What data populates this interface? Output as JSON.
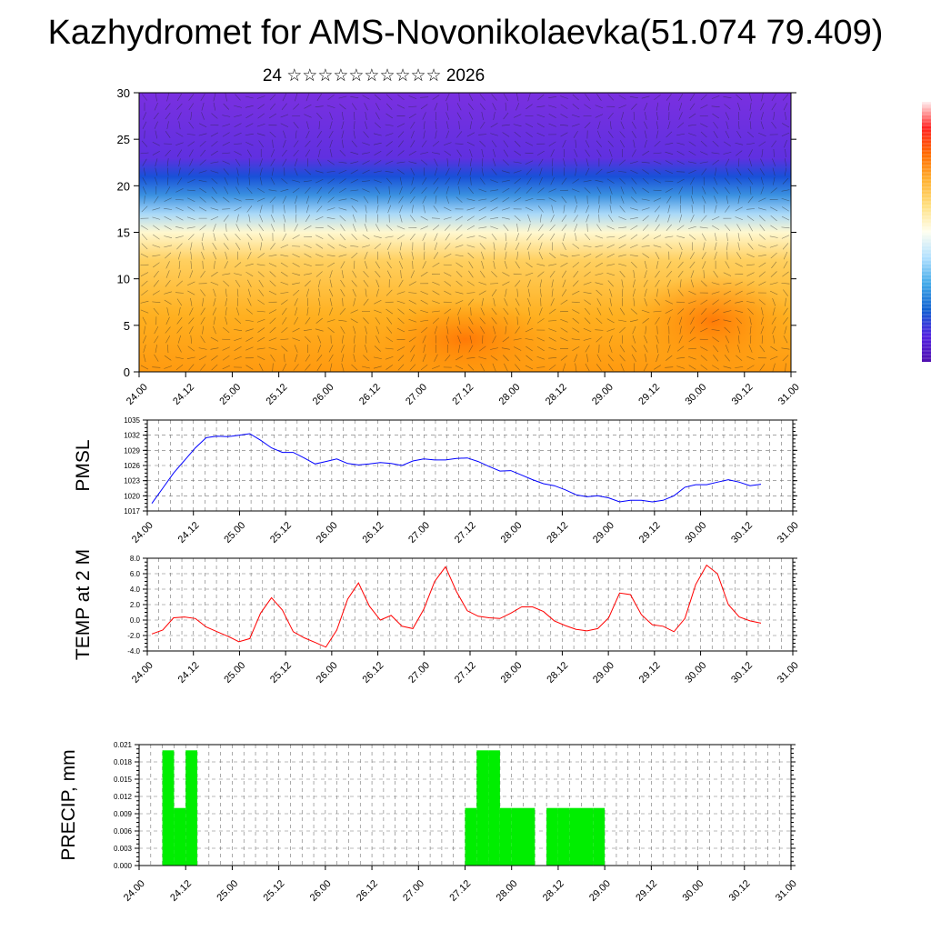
{
  "title": "Kazhydromet for AMS-Novonikolaevka(51.074 79.409)",
  "subtitle": "24 ☆☆☆☆☆☆☆☆☆☆ 2026",
  "colorbar": {
    "colors": [
      "#ffeef0",
      "#ff2020",
      "#ff6a00",
      "#ffb030",
      "#ffe080",
      "#fffff0",
      "#b0e0ff",
      "#40a8e8",
      "#1060d0",
      "#5020e0",
      "#5010b0"
    ]
  },
  "chart_data": [
    {
      "id": "cross-section",
      "type": "heatmap",
      "title": "",
      "xlabel": "",
      "ylabel": "",
      "ylim": [
        0,
        30
      ],
      "yticks": [
        0,
        5,
        10,
        15,
        20,
        25,
        30
      ],
      "x_tick_labels": [
        "24.00",
        "24.12",
        "25.00",
        "25.12",
        "26.00",
        "26.12",
        "27.00",
        "27.12",
        "28.00",
        "28.12",
        "29.00",
        "29.12",
        "30.00",
        "30.12",
        "31.00"
      ],
      "description_levels": [
        {
          "level": 0,
          "color": "#ff9a10"
        },
        {
          "level": 6,
          "color": "#ffb020"
        },
        {
          "level": 12,
          "color": "#ffd060"
        },
        {
          "level": 15,
          "color": "#fff8d0"
        },
        {
          "level": 17,
          "color": "#a8d8f8"
        },
        {
          "level": 19,
          "color": "#3a90e0"
        },
        {
          "level": 21,
          "color": "#1850d8"
        },
        {
          "level": 23,
          "color": "#6030e0"
        },
        {
          "level": 30,
          "color": "#7a30e0"
        }
      ]
    },
    {
      "id": "pmsl",
      "type": "line",
      "ylabel": "PMSL",
      "ylim": [
        1017,
        1035
      ],
      "yticks": [
        "1017",
        "1020",
        "1023",
        "1026",
        "1029",
        "1032",
        "1035"
      ],
      "color": "#0000ff",
      "x_tick_labels": [
        "24.00",
        "24.12",
        "25.00",
        "25.12",
        "26.00",
        "26.12",
        "27.00",
        "27.12",
        "28.00",
        "28.12",
        "29.00",
        "29.12",
        "30.00",
        "30.12",
        "31.00"
      ],
      "values": [
        1018.5,
        1021.5,
        1024.5,
        1027,
        1029.5,
        1031.5,
        1031.8,
        1031.7,
        1032,
        1032.3,
        1031,
        1029.5,
        1028.6,
        1028.6,
        1027.5,
        1026.3,
        1026.8,
        1027.3,
        1026.4,
        1026.1,
        1026.3,
        1026.6,
        1026.4,
        1026,
        1026.9,
        1027.3,
        1027.1,
        1027.1,
        1027.4,
        1027.5,
        1026.8,
        1025.8,
        1024.9,
        1025,
        1024.1,
        1023.2,
        1022.4,
        1022,
        1021.2,
        1020.2,
        1019.8,
        1020,
        1019.6,
        1018.8,
        1019.1,
        1019.1,
        1018.8,
        1019.1,
        1020,
        1021.7,
        1022.2,
        1022.2,
        1022.7,
        1023.2,
        1022.7,
        1022,
        1022.3
      ]
    },
    {
      "id": "temp2m",
      "type": "line",
      "ylabel": "TEMP at 2 M",
      "ylim": [
        -4,
        8
      ],
      "yticks": [
        "-4.0",
        "-2.0",
        "0.0",
        "2.0",
        "4.0",
        "6.0",
        "8.0"
      ],
      "color": "#ff0000",
      "x_tick_labels": [
        "24.00",
        "24.12",
        "25.00",
        "25.12",
        "26.00",
        "26.12",
        "27.00",
        "27.12",
        "28.00",
        "28.12",
        "29.00",
        "29.12",
        "30.00",
        "30.12",
        "31.00"
      ],
      "values": [
        -1.8,
        -1.3,
        0.3,
        0.4,
        0.2,
        -0.9,
        -1.5,
        -2.1,
        -2.8,
        -2.4,
        0.9,
        2.9,
        1.3,
        -1.5,
        -2.3,
        -2.9,
        -3.5,
        -1.3,
        2.7,
        4.8,
        1.8,
        0,
        0.6,
        -0.8,
        -1.1,
        1.4,
        5,
        6.9,
        3.7,
        1.2,
        0.5,
        0.3,
        0.2,
        0.9,
        1.7,
        1.7,
        1.1,
        -0.1,
        -0.7,
        -1.2,
        -1.4,
        -1.1,
        0.3,
        3.5,
        3.3,
        0.7,
        -0.6,
        -0.8,
        -1.5,
        0.2,
        4.6,
        7.1,
        6,
        2,
        0.4,
        -0.1,
        -0.4
      ]
    },
    {
      "id": "precip",
      "type": "bar",
      "ylabel": "PRECIP, mm",
      "ylim": [
        0,
        0.021
      ],
      "yticks": [
        "0.000",
        "0.003",
        "0.006",
        "0.009",
        "0.012",
        "0.015",
        "0.018",
        "0.021"
      ],
      "color": "#00ee00",
      "x_tick_labels": [
        "24.00",
        "24.12",
        "25.00",
        "25.12",
        "26.00",
        "26.12",
        "27.00",
        "27.12",
        "28.00",
        "28.12",
        "29.00",
        "29.12",
        "30.00",
        "30.12",
        "31.00"
      ],
      "values": [
        0,
        0,
        0.02,
        0.01,
        0.02,
        0,
        0,
        0,
        0,
        0,
        0,
        0,
        0,
        0,
        0,
        0,
        0,
        0,
        0,
        0,
        0,
        0,
        0,
        0,
        0,
        0,
        0,
        0,
        0.01,
        0.02,
        0.02,
        0.01,
        0.01,
        0.01,
        0,
        0.01,
        0.01,
        0.01,
        0.01,
        0.01,
        0,
        0,
        0,
        0,
        0,
        0,
        0,
        0,
        0,
        0,
        0,
        0,
        0,
        0,
        0,
        0
      ]
    }
  ]
}
